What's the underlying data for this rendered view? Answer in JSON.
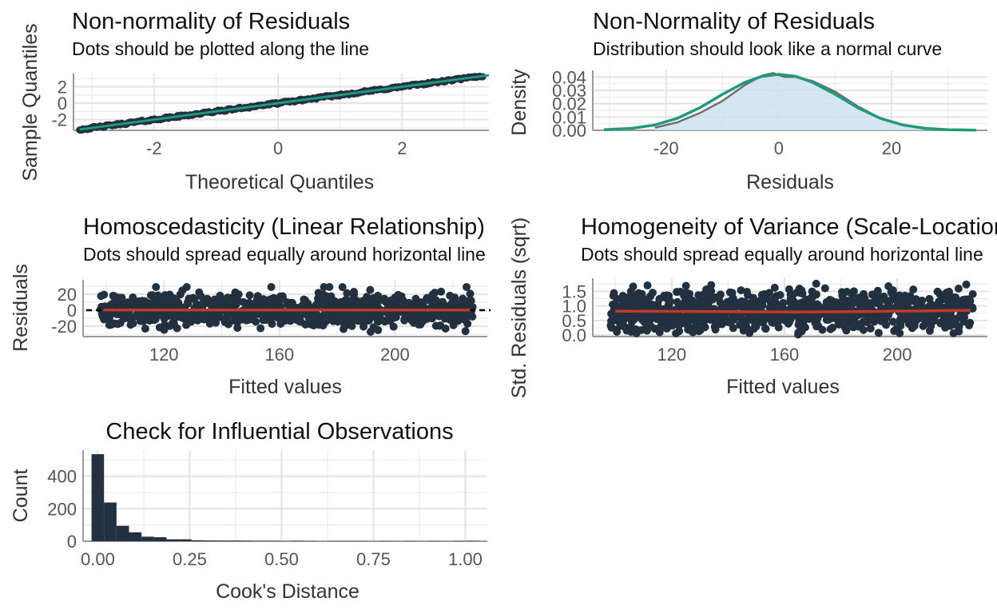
{
  "colors": {
    "points": "#22303f",
    "fit_green": "#1f9a7d",
    "loess_red": "#c0392b",
    "density_fill": "#cfe0f0",
    "density_line": "#707070",
    "reference_line": "#000000"
  },
  "chart_data": [
    {
      "id": "qq",
      "type": "scatter",
      "title": "Non-normality of Residuals",
      "subtitle": "Dots should be plotted along the line",
      "xlabel": "Theoretical Quantiles",
      "ylabel": "Sample Quantiles",
      "xlim": [
        -3.3,
        3.4
      ],
      "ylim": [
        -3.3,
        3.6
      ],
      "xticks": [
        -2,
        0,
        2
      ],
      "yticks": [
        -2,
        0,
        2
      ],
      "xticklabels": [
        "-2",
        "0",
        "2"
      ],
      "yticklabels": [
        "-2",
        "0",
        "2"
      ],
      "reference_line": {
        "slope": 1,
        "intercept": 0
      },
      "points_summary": "~1000 points along y = x, theoretical quantile range [-3.2, 3.3]"
    },
    {
      "id": "density",
      "type": "area",
      "title": "Non-Normality of Residuals",
      "subtitle": "Distribution should look like a normal curve",
      "xlabel": "Residuals",
      "ylabel": "Density",
      "xlim": [
        -33,
        37
      ],
      "ylim": [
        0,
        0.045
      ],
      "xticks": [
        -20,
        0,
        20
      ],
      "yticks": [
        0,
        0.01,
        0.02,
        0.03,
        0.04
      ],
      "xticklabels": [
        "-20",
        "0",
        "20"
      ],
      "yticklabels": [
        "0.00",
        "0.01",
        "0.02",
        "0.03",
        "0.04"
      ],
      "series": [
        {
          "name": "",
          "x": [
            -22,
            -18,
            -14,
            -10,
            -6,
            -3,
            -1,
            1,
            3,
            6,
            10,
            14,
            18,
            22,
            26
          ],
          "values": [
            0.002,
            0.006,
            0.013,
            0.022,
            0.034,
            0.041,
            0.043,
            0.04,
            0.04,
            0.037,
            0.029,
            0.018,
            0.009,
            0.004,
            0.001
          ]
        },
        {
          "name": "",
          "x": [
            -31,
            -26,
            -22,
            -18,
            -14,
            -10,
            -6,
            -3,
            0,
            3,
            6,
            10,
            14,
            18,
            22,
            26,
            30,
            35
          ],
          "values": [
            0.0005,
            0.0015,
            0.004,
            0.009,
            0.017,
            0.027,
            0.036,
            0.0405,
            0.042,
            0.0405,
            0.036,
            0.027,
            0.017,
            0.009,
            0.004,
            0.0015,
            0.0005,
            0.0001
          ]
        }
      ]
    },
    {
      "id": "homoscedasticity",
      "type": "scatter",
      "title": "Homoscedasticity (Linear Relationship)",
      "subtitle": "Dots should spread equally around horizontal line",
      "xlabel": "Fitted values",
      "ylabel": "Residuals",
      "xlim": [
        92,
        232
      ],
      "ylim": [
        -33,
        38
      ],
      "xticks": [
        120,
        160,
        200
      ],
      "yticks": [
        -20,
        0,
        20
      ],
      "xticklabels": [
        "120",
        "160",
        "200"
      ],
      "yticklabels": [
        "-20",
        "0",
        "20"
      ],
      "reference_y": 0,
      "points_summary": "~1000 points, fitted range [98, 227], residuals mostly within [-25, 28]"
    },
    {
      "id": "scale_location",
      "type": "scatter",
      "title": "Homogeneity of Variance (Scale-Location)",
      "subtitle": "Dots should spread equally around horizontal line",
      "xlabel": "Fitted values",
      "ylabel": "Std. Residuals (sqrt)",
      "xlim": [
        92,
        232
      ],
      "ylim": [
        -0.05,
        1.95
      ],
      "xticks": [
        120,
        160,
        200
      ],
      "yticks": [
        0,
        0.5,
        1,
        1.5
      ],
      "xticklabels": [
        "120",
        "160",
        "200"
      ],
      "yticklabels": [
        "0.0",
        "0.5",
        "1.0",
        "1.5"
      ],
      "points_summary": "~1000 points, fitted range [98, 227], sqrt std. residuals within [0, 1.85]",
      "loess": {
        "x": [
          100,
          130,
          160,
          190,
          226
        ],
        "values": [
          0.82,
          0.81,
          0.79,
          0.81,
          0.85
        ]
      }
    },
    {
      "id": "cooks",
      "type": "bar",
      "title": "Check for Influential Observations",
      "xlabel": "Cook's Distance",
      "ylabel": "Count",
      "xlim": [
        -0.04,
        1.06
      ],
      "ylim": [
        0,
        560
      ],
      "xticks": [
        0,
        0.25,
        0.5,
        0.75,
        1
      ],
      "yticks": [
        0,
        200,
        400
      ],
      "xticklabels": [
        "0.00",
        "0.25",
        "0.50",
        "0.75",
        "1.00"
      ],
      "yticklabels": [
        "0",
        "200",
        "400"
      ],
      "bin_width": 0.034,
      "bin_start": -0.017,
      "values": [
        535,
        238,
        95,
        55,
        28,
        25,
        12,
        12,
        6,
        5,
        4,
        4,
        3,
        2,
        2,
        1,
        2,
        1,
        0,
        1,
        1,
        1,
        0,
        1,
        0,
        1,
        0,
        1,
        0,
        1,
        2
      ]
    }
  ]
}
